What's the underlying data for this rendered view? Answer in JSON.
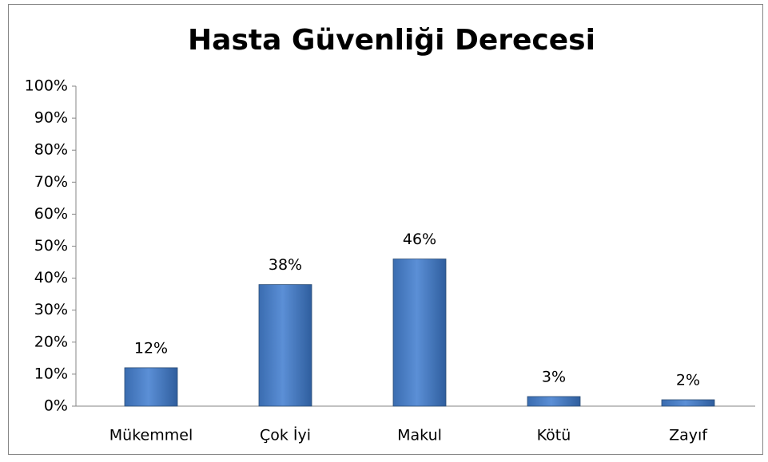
{
  "chart_data": {
    "type": "bar",
    "title": "Hasta Güvenliği Derecesi",
    "categories": [
      "Mükemmel",
      "Çok İyi",
      "Makul",
      "Kötü",
      "Zayıf"
    ],
    "values": [
      12,
      38,
      46,
      3,
      2
    ],
    "value_labels": [
      "12%",
      "38%",
      "46%",
      "3%",
      "2%"
    ],
    "color": "#4f81bd",
    "ylim": [
      0,
      100
    ],
    "yticks": [
      {
        "value": 0,
        "label": "0%"
      },
      {
        "value": 10,
        "label": "10%"
      },
      {
        "value": 20,
        "label": "20%"
      },
      {
        "value": 30,
        "label": "30%"
      },
      {
        "value": 40,
        "label": "40%"
      },
      {
        "value": 50,
        "label": "50%"
      },
      {
        "value": 60,
        "label": "60%"
      },
      {
        "value": 70,
        "label": "70%"
      },
      {
        "value": 80,
        "label": "80%"
      },
      {
        "value": 90,
        "label": "90%"
      },
      {
        "value": 100,
        "label": "100%"
      }
    ],
    "grid": false
  }
}
